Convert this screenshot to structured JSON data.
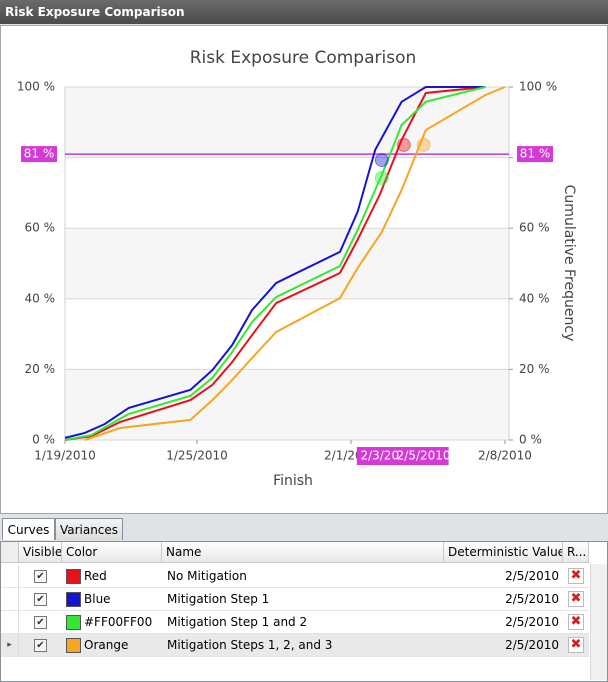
{
  "window_title": "Risk Exposure Comparison",
  "chart_data": {
    "type": "line",
    "title": "Risk Exposure Comparison",
    "x_label": "Finish",
    "y2_label": "Cumulative Frequency",
    "xlim": [
      0,
      20
    ],
    "xticks": [
      {
        "value": 0,
        "label": "1/19/2010"
      },
      {
        "value": 6,
        "label": "1/25/2010"
      },
      {
        "value": 13,
        "label": "2/1/2010"
      },
      {
        "value": 20,
        "label": "2/8/2010"
      }
    ],
    "ylim": [
      0,
      100
    ],
    "yticks": [
      {
        "value": 0,
        "label": "0 %"
      },
      {
        "value": 20,
        "label": "20 %"
      },
      {
        "value": 40,
        "label": "40 %"
      },
      {
        "value": 60,
        "label": "60 %"
      },
      {
        "value": 80,
        "label": "80 %"
      },
      {
        "value": 100,
        "label": "100 %"
      }
    ],
    "y2lim": [
      0,
      100
    ],
    "y2ticks": [
      {
        "value": 0,
        "label": "0 %"
      },
      {
        "value": 20,
        "label": "20 %"
      },
      {
        "value": 40,
        "label": "40 %"
      },
      {
        "value": 60,
        "label": "60 %"
      },
      {
        "value": 80,
        "label": "80 %"
      },
      {
        "value": 100,
        "label": "100 %"
      }
    ],
    "grid": true,
    "threshold": {
      "value": 81,
      "label": "81 %"
    },
    "x_markers": [
      {
        "value": 14.4,
        "label": "2/3/20:"
      },
      {
        "value": 16.3,
        "label": "2/5/2010"
      }
    ],
    "series": [
      {
        "color": "#e8101a",
        "x": [
          0,
          1.2,
          2.5,
          5.7,
          6.7,
          7.6,
          8.5,
          9.6,
          12.5,
          13.3,
          14.3,
          15.3,
          16.4,
          19.1
        ],
        "values": [
          0,
          1.1,
          5.1,
          11.3,
          15.6,
          22.1,
          29.7,
          38.8,
          47.3,
          56.7,
          69.4,
          85,
          98.3,
          100
        ],
        "marker": [
          15.4,
          83.6
        ]
      },
      {
        "color": "#1515d0",
        "x": [
          0,
          0.9,
          1.8,
          2.9,
          5.7,
          6.7,
          7.6,
          8.5,
          9.6,
          12.5,
          13.3,
          14.1,
          15.3,
          16.4,
          19.1
        ],
        "values": [
          0.6,
          2,
          4.5,
          9.1,
          14.2,
          19.8,
          26.9,
          36.8,
          44.5,
          53.3,
          64.6,
          82.2,
          95.8,
          100,
          100
        ],
        "marker": [
          14.4,
          79.3
        ]
      },
      {
        "color": "#33e833",
        "x": [
          0,
          1.2,
          2.9,
          5.7,
          6.7,
          7.6,
          8.5,
          9.6,
          12.5,
          13.3,
          14.4,
          15.3,
          16.4,
          19.1
        ],
        "values": [
          0,
          1.4,
          7.4,
          12.5,
          17.6,
          24.9,
          33.4,
          40.5,
          49.3,
          59.5,
          75.1,
          89.2,
          95.8,
          100
        ],
        "marker": [
          14.4,
          74.2
        ]
      },
      {
        "color": "#f5a623",
        "x": [
          0.9,
          2.5,
          5.7,
          6.7,
          7.6,
          8.5,
          9.6,
          12.5,
          13.3,
          14.4,
          15.3,
          16.4,
          19.1,
          20
        ],
        "values": [
          0,
          3.4,
          5.7,
          11.3,
          17,
          23.2,
          30.6,
          40.2,
          48.7,
          58.9,
          70.8,
          87.8,
          97.7,
          100
        ],
        "marker": [
          16.3,
          83.6
        ]
      }
    ]
  },
  "tabs": [
    "Curves",
    "Variances"
  ],
  "table": {
    "columns": [
      "Visible",
      "Color",
      "Name",
      "Deterministic Value",
      "R..."
    ],
    "selected_row": 3,
    "rows": [
      {
        "visible": true,
        "color": "Red",
        "name": "No Mitigation",
        "value": "2/5/2010"
      },
      {
        "visible": true,
        "color": "Blue",
        "name": "Mitigation Step 1",
        "value": "2/5/2010"
      },
      {
        "visible": true,
        "color": "#FF00FF00",
        "name": "Mitigation Step 1 and 2",
        "value": "2/5/2010"
      },
      {
        "visible": true,
        "color": "Orange",
        "name": "Mitigation Steps 1, 2, and 3",
        "value": "2/5/2010"
      }
    ]
  }
}
